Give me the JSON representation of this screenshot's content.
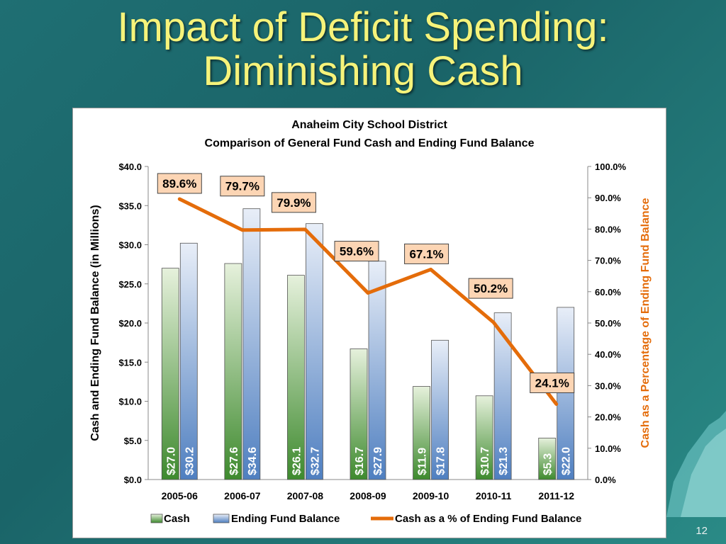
{
  "slide": {
    "title_line1": "Impact of Deficit Spending:",
    "title_line2": "Diminishing Cash",
    "number": "12"
  },
  "colors": {
    "title": "#f6f37a",
    "cash_bar": "#3e8a2e",
    "fund_bar": "#4f7fc0",
    "line": "#e46c0a",
    "label_box_fill": "#fcd5b4",
    "right_axis_label": "#e46c0a"
  },
  "chart_data": {
    "type": "bar",
    "title": "Anaheim City School District",
    "subtitle": "Comparison of General Fund Cash and Ending Fund Balance",
    "ylabel": "Cash and Ending Fund Balance (in Millions)",
    "y2label": "Cash as a Percentage of Ending Fund Balance",
    "ylim": [
      0,
      40
    ],
    "y2lim": [
      0,
      100
    ],
    "y_ticks": [
      "$0.0",
      "$5.0",
      "$10.0",
      "$15.0",
      "$20.0",
      "$25.0",
      "$30.0",
      "$35.0",
      "$40.0"
    ],
    "y2_ticks": [
      "0.0%",
      "10.0%",
      "20.0%",
      "30.0%",
      "40.0%",
      "50.0%",
      "60.0%",
      "70.0%",
      "80.0%",
      "90.0%",
      "100.0%"
    ],
    "categories": [
      "2005-06",
      "2006-07",
      "2007-08",
      "2008-09",
      "2009-10",
      "2010-11",
      "2011-12"
    ],
    "series": [
      {
        "name": "Cash",
        "kind": "bar",
        "values": [
          27.0,
          27.6,
          26.1,
          16.7,
          11.9,
          10.7,
          5.3
        ],
        "labels": [
          "$27.0",
          "$27.6",
          "$26.1",
          "$16.7",
          "$11.9",
          "$10.7",
          "$5.3"
        ]
      },
      {
        "name": "Ending Fund Balance",
        "kind": "bar",
        "values": [
          30.2,
          34.6,
          32.7,
          27.9,
          17.8,
          21.3,
          22.0
        ],
        "labels": [
          "$30.2",
          "$34.6",
          "$32.7",
          "$27.9",
          "$17.8",
          "$21.3",
          "$22.0"
        ]
      },
      {
        "name": "Cash as a % of Ending Fund Balance",
        "kind": "line",
        "axis": "right",
        "values": [
          89.6,
          79.7,
          79.9,
          59.6,
          67.1,
          50.2,
          24.1
        ],
        "labels": [
          "89.6%",
          "79.7%",
          "79.9%",
          "59.6%",
          "67.1%",
          "50.2%",
          "24.1%"
        ]
      }
    ],
    "legend": "bottom",
    "grid": false
  }
}
